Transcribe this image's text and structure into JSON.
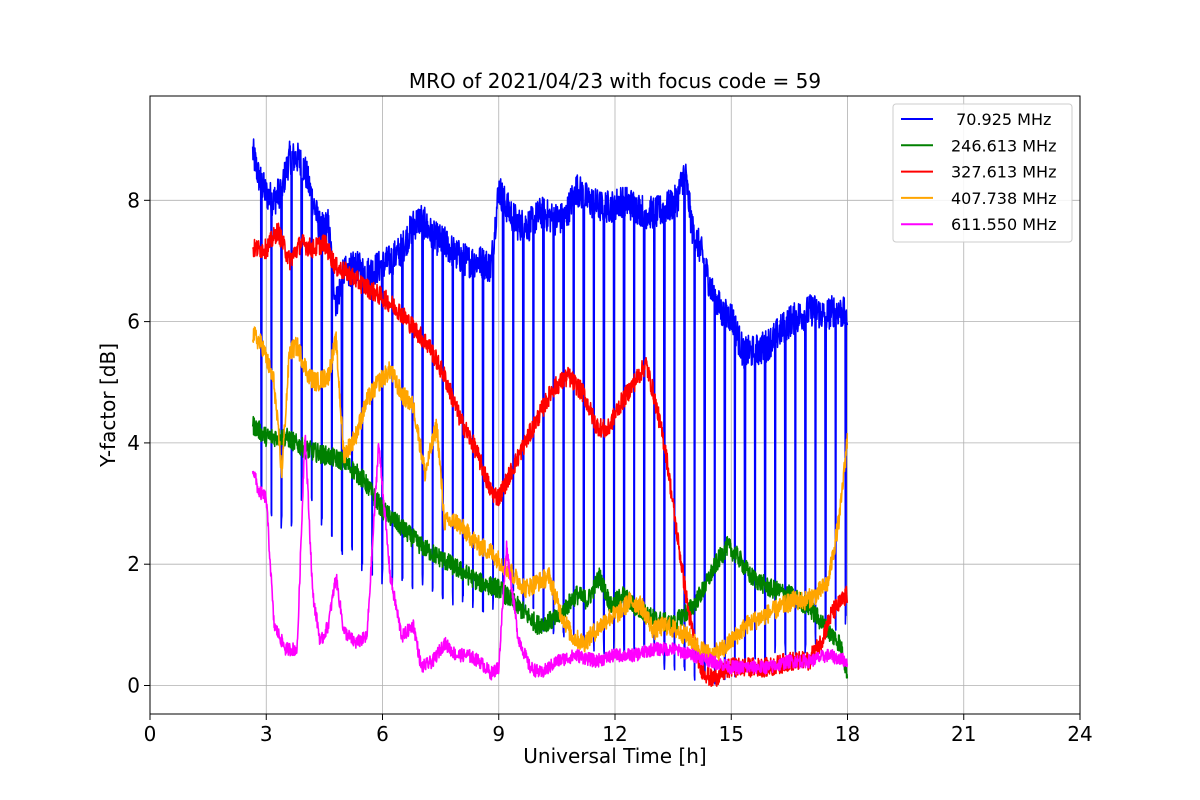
{
  "chart_data": {
    "type": "line",
    "title": "MRO of 2021/04/23 with focus code = 59",
    "xlabel": "Universal Time [h]",
    "ylabel": "Y-factor [dB]",
    "xlim": [
      0,
      24
    ],
    "ylim": [
      -0.47,
      9.72
    ],
    "xticks": [
      0,
      3,
      6,
      9,
      12,
      15,
      18,
      21,
      24
    ],
    "yticks": [
      0,
      2,
      4,
      6,
      8
    ],
    "grid": true,
    "legend_position": "top-right",
    "series": [
      {
        "name": " 70.925 MHz",
        "color": "#0000ff",
        "style": "envelope-with-periodic-dips",
        "dip_period_h": 0.26,
        "x": [
          2.65,
          2.8,
          3.0,
          3.2,
          3.4,
          3.6,
          3.8,
          4.0,
          4.2,
          4.4,
          4.6,
          4.8,
          5.0,
          5.3,
          5.6,
          5.9,
          6.2,
          6.5,
          6.8,
          7.0,
          7.3,
          7.6,
          7.9,
          8.2,
          8.5,
          8.8,
          9.0,
          9.2,
          9.5,
          9.8,
          10.1,
          10.4,
          10.7,
          11.0,
          11.3,
          11.6,
          11.9,
          12.2,
          12.5,
          12.8,
          13.1,
          13.4,
          13.6,
          13.8,
          14.0,
          14.2,
          14.5,
          14.8,
          15.0,
          15.3,
          15.6,
          15.9,
          16.2,
          16.5,
          16.8,
          17.1,
          17.4,
          17.7,
          18.0
        ],
        "values": [
          8.8,
          8.4,
          8.1,
          8.0,
          8.2,
          8.7,
          8.7,
          8.5,
          8.0,
          7.5,
          7.6,
          6.3,
          6.8,
          6.9,
          6.8,
          6.9,
          7.0,
          7.2,
          7.6,
          7.7,
          7.4,
          7.3,
          7.1,
          7.0,
          7.0,
          6.9,
          8.2,
          7.9,
          7.6,
          7.6,
          7.8,
          7.7,
          7.7,
          8.2,
          8.0,
          7.9,
          7.9,
          8.0,
          7.9,
          7.8,
          7.8,
          7.9,
          8.0,
          8.5,
          7.5,
          7.2,
          6.5,
          6.1,
          6.1,
          5.5,
          5.5,
          5.6,
          5.8,
          6.0,
          6.1,
          6.2,
          6.1,
          6.2,
          6.1
        ],
        "dip_floor": [
          4.0,
          3.2,
          2.9,
          2.7,
          2.5,
          2.3,
          3.0,
          3.1,
          3.0,
          2.6,
          2.3,
          2.2,
          2.0,
          2.0,
          1.8,
          1.7,
          1.6,
          1.6,
          1.5,
          1.6,
          1.4,
          1.3,
          1.3,
          1.3,
          1.2,
          1.2,
          1.4,
          1.5,
          1.2,
          1.1,
          0.9,
          0.8,
          0.7,
          0.7,
          0.6,
          0.5,
          0.5,
          0.4,
          0.4,
          0.4,
          0.3,
          0.2,
          0.2,
          0.1,
          0.1,
          0.05,
          0.0,
          0.1,
          0.1,
          0.2,
          0.2,
          0.3,
          0.4,
          0.5,
          0.5,
          0.6,
          0.7,
          0.8,
          0.9
        ]
      },
      {
        "name": "246.613 MHz",
        "color": "#008000",
        "style": "line",
        "x": [
          2.65,
          3.0,
          3.5,
          4.0,
          4.5,
          5.0,
          5.5,
          6.0,
          6.5,
          7.0,
          7.5,
          8.0,
          8.5,
          9.0,
          9.5,
          10.0,
          10.5,
          11.0,
          11.3,
          11.6,
          11.9,
          12.2,
          12.5,
          13.0,
          13.5,
          14.0,
          14.3,
          14.6,
          14.9,
          15.2,
          15.5,
          16.0,
          16.5,
          17.0,
          17.5,
          17.8,
          18.0
        ],
        "values": [
          4.3,
          4.1,
          4.1,
          3.9,
          3.8,
          3.7,
          3.4,
          2.9,
          2.6,
          2.3,
          2.1,
          1.9,
          1.7,
          1.6,
          1.3,
          1.0,
          1.1,
          1.5,
          1.4,
          1.8,
          1.3,
          1.5,
          1.3,
          1.1,
          1.0,
          1.3,
          1.6,
          2.0,
          2.3,
          2.1,
          1.8,
          1.6,
          1.5,
          1.3,
          0.9,
          0.7,
          0.2
        ]
      },
      {
        "name": "327.613 MHz",
        "color": "#ff0000",
        "style": "line",
        "x": [
          2.65,
          3.0,
          3.3,
          3.6,
          3.9,
          4.2,
          4.5,
          4.8,
          5.1,
          5.5,
          6.0,
          6.4,
          6.8,
          7.2,
          7.6,
          8.0,
          8.4,
          8.8,
          9.0,
          9.3,
          9.6,
          10.0,
          10.4,
          10.8,
          11.2,
          11.5,
          11.8,
          12.1,
          12.5,
          12.8,
          13.0,
          13.3,
          13.6,
          13.9,
          14.2,
          14.5,
          15.0,
          15.5,
          16.0,
          16.5,
          17.0,
          17.3,
          17.6,
          18.0
        ],
        "values": [
          7.2,
          7.2,
          7.5,
          7.0,
          7.3,
          7.2,
          7.3,
          6.9,
          6.8,
          6.6,
          6.4,
          6.2,
          5.9,
          5.6,
          5.1,
          4.4,
          3.9,
          3.2,
          3.1,
          3.5,
          3.9,
          4.4,
          4.9,
          5.1,
          4.8,
          4.3,
          4.2,
          4.6,
          5.0,
          5.3,
          4.8,
          3.9,
          2.5,
          1.2,
          0.3,
          0.1,
          0.3,
          0.3,
          0.3,
          0.4,
          0.4,
          0.7,
          1.2,
          1.5
        ]
      },
      {
        "name": "407.738 MHz",
        "color": "#ffa500",
        "style": "line",
        "x": [
          2.65,
          2.9,
          3.2,
          3.4,
          3.6,
          3.8,
          4.1,
          4.3,
          4.6,
          4.8,
          5.0,
          5.3,
          5.6,
          5.9,
          6.2,
          6.5,
          6.8,
          7.1,
          7.4,
          7.6,
          7.9,
          8.2,
          8.5,
          8.8,
          9.1,
          9.4,
          9.7,
          10.0,
          10.3,
          10.6,
          10.9,
          11.2,
          11.5,
          11.8,
          12.1,
          12.4,
          12.7,
          13.0,
          13.3,
          13.6,
          13.9,
          14.2,
          14.5,
          14.8,
          15.1,
          15.4,
          15.7,
          16.0,
          16.3,
          16.6,
          16.9,
          17.2,
          17.5,
          17.8,
          18.0
        ],
        "values": [
          5.8,
          5.6,
          5.0,
          3.5,
          5.5,
          5.6,
          5.1,
          5.0,
          5.1,
          5.7,
          3.8,
          4.1,
          4.7,
          5.0,
          5.2,
          4.8,
          4.6,
          3.5,
          4.3,
          2.7,
          2.7,
          2.5,
          2.3,
          2.2,
          2.0,
          1.8,
          1.6,
          1.7,
          1.8,
          1.2,
          0.8,
          0.7,
          0.9,
          1.1,
          1.2,
          1.4,
          1.3,
          0.9,
          1.0,
          0.9,
          0.8,
          0.6,
          0.5,
          0.6,
          0.8,
          1.0,
          1.1,
          1.2,
          1.3,
          1.4,
          1.4,
          1.5,
          1.7,
          2.8,
          4.1
        ]
      },
      {
        "name": "611.550 MHz",
        "color": "#ff00ff",
        "style": "line",
        "x": [
          2.65,
          2.8,
          3.0,
          3.2,
          3.5,
          3.8,
          4.0,
          4.2,
          4.4,
          4.6,
          4.8,
          5.0,
          5.3,
          5.6,
          5.9,
          6.2,
          6.5,
          6.8,
          7.0,
          7.3,
          7.6,
          7.9,
          8.2,
          8.5,
          8.8,
          9.0,
          9.2,
          9.5,
          9.8,
          10.1,
          10.5,
          11.0,
          11.5,
          12.0,
          12.5,
          13.0,
          13.5,
          14.0,
          14.5,
          15.0,
          15.5,
          16.0,
          16.5,
          17.0,
          17.5,
          18.0
        ],
        "values": [
          3.6,
          3.2,
          3.1,
          1.0,
          0.6,
          0.6,
          4.2,
          1.5,
          0.7,
          1.0,
          1.8,
          0.9,
          0.7,
          0.8,
          4.0,
          1.8,
          0.8,
          1.0,
          0.3,
          0.4,
          0.7,
          0.5,
          0.5,
          0.4,
          0.2,
          0.3,
          2.3,
          0.8,
          0.3,
          0.2,
          0.4,
          0.5,
          0.4,
          0.5,
          0.5,
          0.6,
          0.6,
          0.5,
          0.4,
          0.3,
          0.3,
          0.3,
          0.4,
          0.4,
          0.5,
          0.4
        ]
      }
    ]
  }
}
